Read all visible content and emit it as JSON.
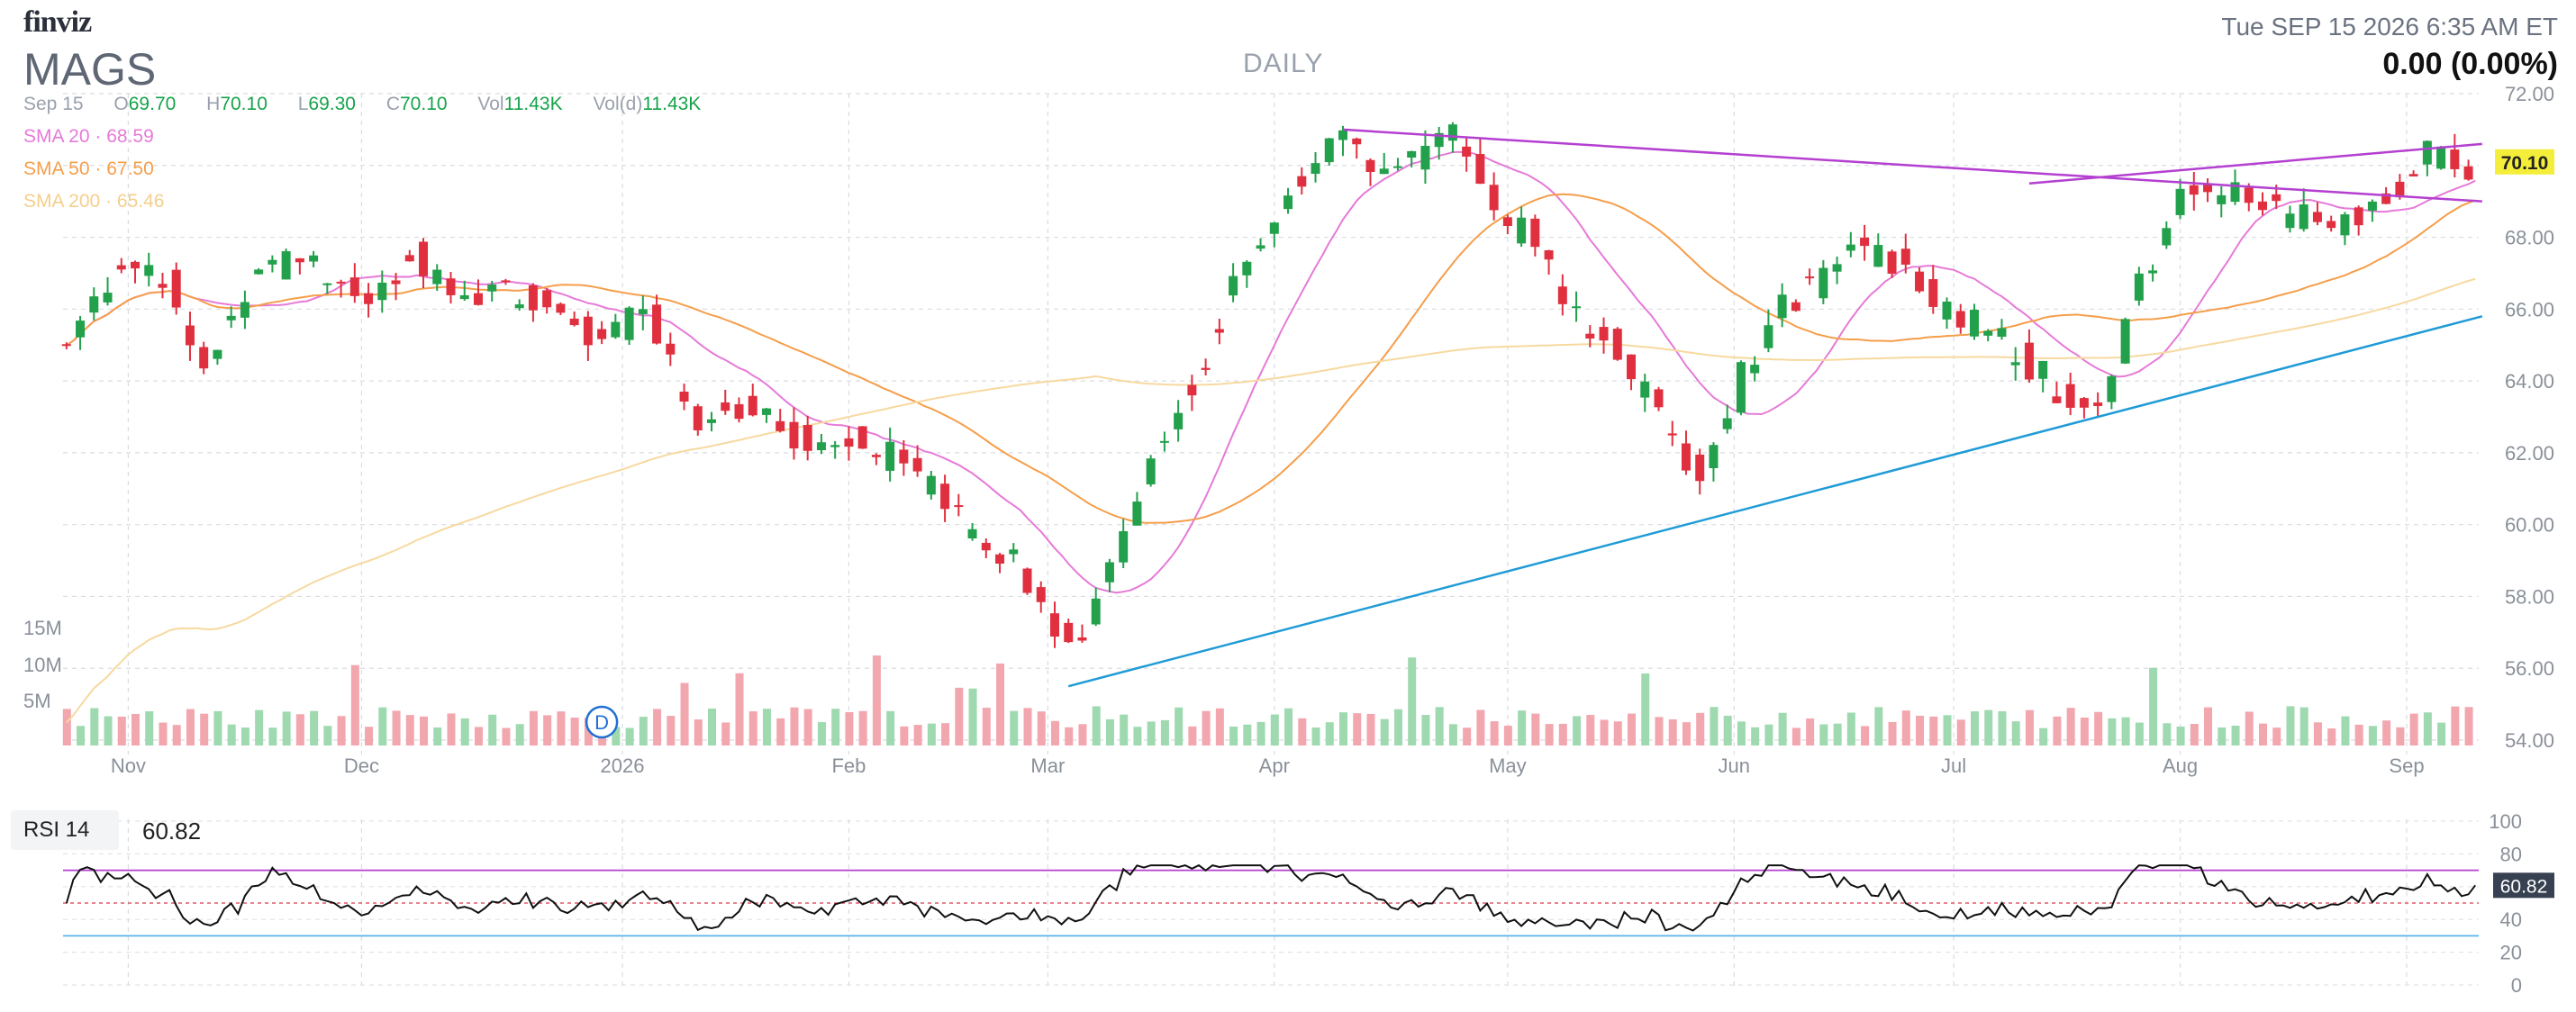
{
  "header": {
    "logo": "finviz",
    "ticker": "MAGS",
    "period": "DAILY",
    "datetime": "Tue SEP 15 2026 6:35 AM ET",
    "change": "0.00 (0.00%)"
  },
  "ohlc": {
    "date": "Sep 15",
    "o_label": "O",
    "o": "69.70",
    "h_label": "H",
    "h": "70.10",
    "l_label": "L",
    "l": "69.30",
    "c_label": "C",
    "c": "70.10",
    "vol_label": "Vol",
    "vol": "11.43K",
    "vold_label": "Vol(d)",
    "vold": "11.43K"
  },
  "indicators": {
    "sma20": {
      "label": "SMA 20",
      "value": "68.59",
      "color": "#e67ad8"
    },
    "sma50": {
      "label": "SMA 50",
      "value": "67.50",
      "color": "#f59e4b"
    },
    "sma200": {
      "label": "SMA 200",
      "value": "65.46",
      "color": "#f7d9a0"
    }
  },
  "rsi": {
    "label": "RSI 14",
    "value": "60.82",
    "ticks": [
      "100",
      "80",
      "60",
      "40",
      "20",
      "0"
    ]
  },
  "chart_data": {
    "type": "candlestick",
    "price_ticks": [
      "72.00",
      "70.00",
      "68.00",
      "66.00",
      "64.00",
      "62.00",
      "60.00",
      "58.00",
      "56.00",
      "54.00"
    ],
    "ylim": [
      54,
      72
    ],
    "last_price": "70.10",
    "volume_ticks": [
      "15M",
      "10M",
      "5M"
    ],
    "month_labels": [
      "Nov",
      "Dec",
      "2026",
      "Feb",
      "Mar",
      "Apr",
      "May",
      "Jun",
      "Jul",
      "Aug",
      "Sep"
    ],
    "dividend_marker": "D",
    "colors": {
      "up": "#22a04b",
      "down": "#e0303f",
      "vol_up": "#9fd9b0",
      "vol_down": "#f2a6ae",
      "trend_purple": "#b43fd0",
      "trend_blue": "#1f9bd6"
    },
    "price_path_anchors": [
      [
        0,
        65.0
      ],
      [
        8,
        67.4
      ],
      [
        14,
        67.0
      ],
      [
        20,
        64.3
      ],
      [
        28,
        67.4
      ],
      [
        36,
        67.3
      ],
      [
        44,
        66.1
      ],
      [
        50,
        67.6
      ],
      [
        56,
        66.4
      ],
      [
        64,
        66.5
      ],
      [
        70,
        66.0
      ],
      [
        78,
        65.2
      ],
      [
        84,
        66.3
      ],
      [
        92,
        63.0
      ],
      [
        100,
        63.4
      ],
      [
        106,
        62.3
      ],
      [
        114,
        62.5
      ],
      [
        122,
        61.7
      ],
      [
        130,
        60.2
      ],
      [
        138,
        59.0
      ],
      [
        146,
        56.3
      ],
      [
        152,
        58.8
      ],
      [
        158,
        61.7
      ],
      [
        164,
        63.8
      ],
      [
        170,
        66.6
      ],
      [
        176,
        68.2
      ],
      [
        182,
        70.3
      ],
      [
        186,
        71.0
      ],
      [
        190,
        69.8
      ],
      [
        196,
        70.1
      ],
      [
        202,
        70.8
      ],
      [
        208,
        69.2
      ],
      [
        214,
        67.7
      ],
      [
        220,
        65.8
      ],
      [
        226,
        64.9
      ],
      [
        232,
        62.9
      ],
      [
        238,
        61.3
      ],
      [
        244,
        64.1
      ],
      [
        250,
        66.0
      ],
      [
        256,
        67.0
      ],
      [
        262,
        67.8
      ],
      [
        268,
        67.1
      ],
      [
        276,
        65.8
      ],
      [
        284,
        64.8
      ],
      [
        290,
        63.8
      ],
      [
        296,
        63.0
      ],
      [
        302,
        66.6
      ],
      [
        308,
        69.2
      ],
      [
        314,
        69.3
      ],
      [
        320,
        68.9
      ],
      [
        326,
        68.5
      ],
      [
        332,
        68.6
      ],
      [
        338,
        69.0
      ],
      [
        344,
        70.3
      ],
      [
        350,
        69.7
      ],
      [
        352,
        70.1
      ]
    ]
  }
}
